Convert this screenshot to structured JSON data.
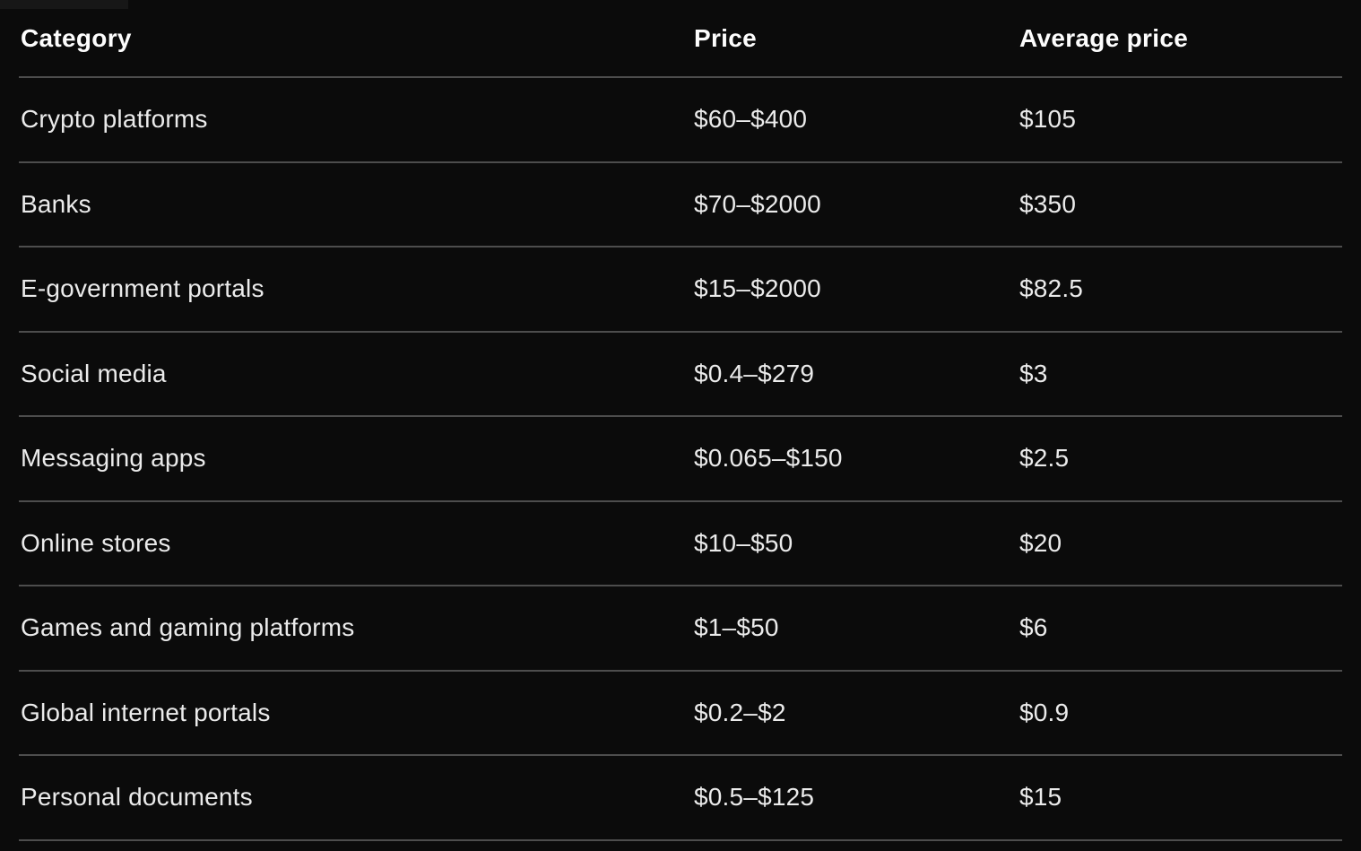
{
  "colors": {
    "background": "#0b0b0b",
    "row_separator": "#4d4d4d",
    "header_text": "#fdfdfd",
    "body_text": "#ebebeb"
  },
  "table": {
    "columns": [
      {
        "key": "category",
        "label": "Category"
      },
      {
        "key": "price",
        "label": "Price"
      },
      {
        "key": "avg",
        "label": "Average price"
      }
    ],
    "rows": [
      {
        "category": "Crypto platforms",
        "price": "$60–$400",
        "avg": "$105"
      },
      {
        "category": "Banks",
        "price": "$70–$2000",
        "avg": "$350"
      },
      {
        "category": "E-government portals",
        "price": "$15–$2000",
        "avg": "$82.5"
      },
      {
        "category": "Social media",
        "price": "$0.4–$279",
        "avg": "$3"
      },
      {
        "category": "Messaging apps",
        "price": "$0.065–$150",
        "avg": "$2.5"
      },
      {
        "category": "Online stores",
        "price": "$10–$50",
        "avg": "$20"
      },
      {
        "category": "Games and gaming platforms",
        "price": "$1–$50",
        "avg": "$6"
      },
      {
        "category": "Global internet portals",
        "price": "$0.2–$2",
        "avg": "$0.9"
      },
      {
        "category": "Personal documents",
        "price": "$0.5–$125",
        "avg": "$15"
      }
    ]
  },
  "chart_data": {
    "type": "table",
    "title": "",
    "columns": [
      "Category",
      "Price",
      "Average price"
    ],
    "rows": [
      [
        "Crypto platforms",
        "$60–$400",
        "$105"
      ],
      [
        "Banks",
        "$70–$2000",
        "$350"
      ],
      [
        "E-government portals",
        "$15–$2000",
        "$82.5"
      ],
      [
        "Social media",
        "$0.4–$279",
        "$3"
      ],
      [
        "Messaging apps",
        "$0.065–$150",
        "$2.5"
      ],
      [
        "Online stores",
        "$10–$50",
        "$20"
      ],
      [
        "Games and gaming platforms",
        "$1–$50",
        "$6"
      ],
      [
        "Global internet portals",
        "$0.2–$2",
        "$0.9"
      ],
      [
        "Personal documents",
        "$0.5–$125",
        "$15"
      ]
    ],
    "price_range_numeric": [
      {
        "category": "Crypto platforms",
        "min": 60,
        "max": 400,
        "average": 105
      },
      {
        "category": "Banks",
        "min": 70,
        "max": 2000,
        "average": 350
      },
      {
        "category": "E-government portals",
        "min": 15,
        "max": 2000,
        "average": 82.5
      },
      {
        "category": "Social media",
        "min": 0.4,
        "max": 279,
        "average": 3
      },
      {
        "category": "Messaging apps",
        "min": 0.065,
        "max": 150,
        "average": 2.5
      },
      {
        "category": "Online stores",
        "min": 10,
        "max": 50,
        "average": 20
      },
      {
        "category": "Games and gaming platforms",
        "min": 1,
        "max": 50,
        "average": 6
      },
      {
        "category": "Global internet portals",
        "min": 0.2,
        "max": 2,
        "average": 0.9
      },
      {
        "category": "Personal documents",
        "min": 0.5,
        "max": 125,
        "average": 15
      }
    ]
  }
}
